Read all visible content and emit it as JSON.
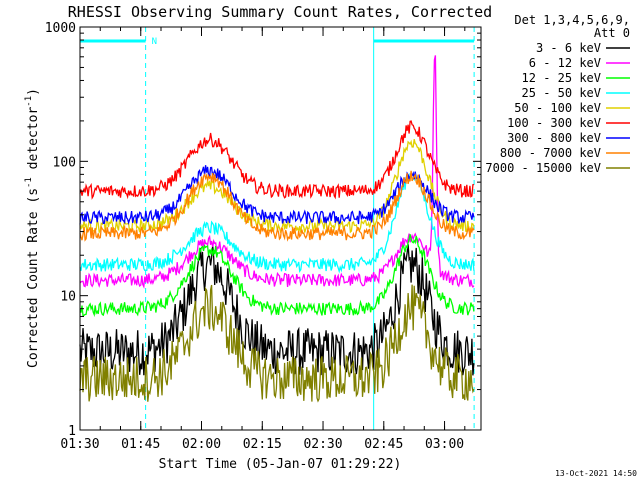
{
  "chart_data": {
    "type": "line",
    "title": "RHESSI Observing Summary Count Rates, Corrected",
    "xlabel": "Start Time (05-Jan-07 01:29:22)",
    "ylabel_main": "Corrected Count Rate (s",
    "ylabel_sup1": "-1",
    "ylabel_mid": " detector",
    "ylabel_sup2": "-1",
    "ylabel_end": ")",
    "x_axis_minutes": [
      0,
      99
    ],
    "x_ticks": [
      {
        "minute": 0,
        "label": "01:30"
      },
      {
        "minute": 15,
        "label": "01:45"
      },
      {
        "minute": 30,
        "label": "02:00"
      },
      {
        "minute": 45,
        "label": "02:15"
      },
      {
        "minute": 60,
        "label": "02:30"
      },
      {
        "minute": 75,
        "label": "02:45"
      },
      {
        "minute": 90,
        "label": "03:00"
      }
    ],
    "y_scale": "log",
    "ylim": [
      1,
      1000
    ],
    "y_ticks": [
      {
        "value": 1,
        "label": "1"
      },
      {
        "value": 10,
        "label": "10"
      },
      {
        "value": 100,
        "label": "100"
      },
      {
        "value": 1000,
        "label": "1000"
      }
    ],
    "legend_header": [
      "Det 1,3,4,5,6,9,",
      "Att 0"
    ],
    "legend_position": "right",
    "night_marker_label": "N",
    "saa_bars": [
      {
        "start_minute": 0,
        "end_minute": 16.2
      },
      {
        "start_minute": 72.5,
        "end_minute": 97.3
      }
    ],
    "timestamp": "13-Oct-2021 14:50",
    "series": [
      {
        "name": "3 - 6 keV",
        "color": "#000000",
        "base": 3.8,
        "peak1": 17,
        "peak2": 17,
        "flare": 0
      },
      {
        "name": "6 - 12 keV",
        "color": "#ff00ff",
        "base": 13,
        "peak1": 25,
        "peak2": 28,
        "flare": 700
      },
      {
        "name": "12 - 25 keV",
        "color": "#00ff00",
        "base": 8,
        "peak1": 22,
        "peak2": 26,
        "flare": 0
      },
      {
        "name": "25 - 50 keV",
        "color": "#00ffff",
        "base": 17,
        "peak1": 32,
        "peak2": 80,
        "flare": 0
      },
      {
        "name": "50 - 100 keV",
        "color": "#e0d000",
        "base": 33,
        "peak1": 65,
        "peak2": 140,
        "flare": 0
      },
      {
        "name": "100 - 300 keV",
        "color": "#ff0000",
        "base": 60,
        "peak1": 145,
        "peak2": 180,
        "flare": 0
      },
      {
        "name": "300 - 800 keV",
        "color": "#0000ff",
        "base": 38,
        "peak1": 85,
        "peak2": 80,
        "flare": 0
      },
      {
        "name": "800 - 7000 keV",
        "color": "#ff8000",
        "base": 29,
        "peak1": 78,
        "peak2": 78,
        "flare": 0
      },
      {
        "name": "7000 - 15000 keV",
        "color": "#808000",
        "base": 2.4,
        "peak1": 8,
        "peak2": 8,
        "flare": 0
      }
    ]
  }
}
